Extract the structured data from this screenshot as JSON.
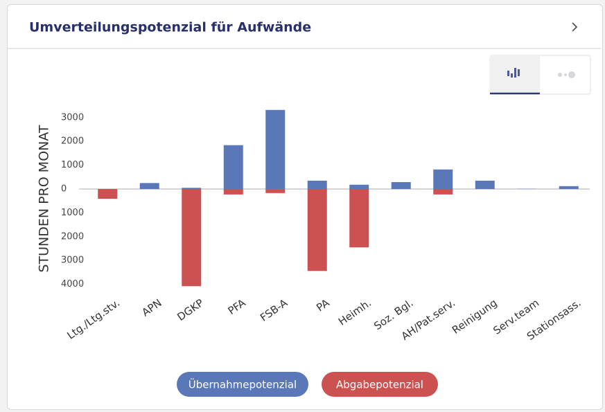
{
  "header": {
    "title": "Umverteilungspotenzial für Aufwände"
  },
  "chart_data": {
    "type": "bar",
    "ylabel": "STUNDEN PRO MONAT",
    "categories": [
      "Ltg./Ltg.stv.",
      "APN",
      "DGKP",
      "PFA",
      "FSB-A",
      "PA",
      "Heimh.",
      "Soz. Bgl.",
      "AH/Pat.serv.",
      "Reinigung",
      "Serv.team",
      "Stationsass."
    ],
    "series": [
      {
        "name": "Übernahmepotenzial",
        "color": "#5a78b8",
        "values": [
          0,
          250,
          50,
          1840,
          3320,
          350,
          180,
          290,
          820,
          350,
          10,
          120
        ]
      },
      {
        "name": "Abgabepotenzial",
        "color": "#cc5252",
        "values": [
          -410,
          0,
          -4080,
          -230,
          -170,
          -3440,
          -2450,
          0,
          -230,
          0,
          0,
          0
        ]
      }
    ],
    "ylim": [
      -4100,
      3400
    ],
    "yticks": [
      3000,
      2000,
      1000,
      0,
      {
        "value": -1000,
        "label": "1000"
      },
      {
        "value": -2000,
        "label": "2000"
      },
      {
        "value": -3000,
        "label": "3000"
      },
      {
        "value": -4000,
        "label": "4000"
      }
    ],
    "grid": false
  }
}
